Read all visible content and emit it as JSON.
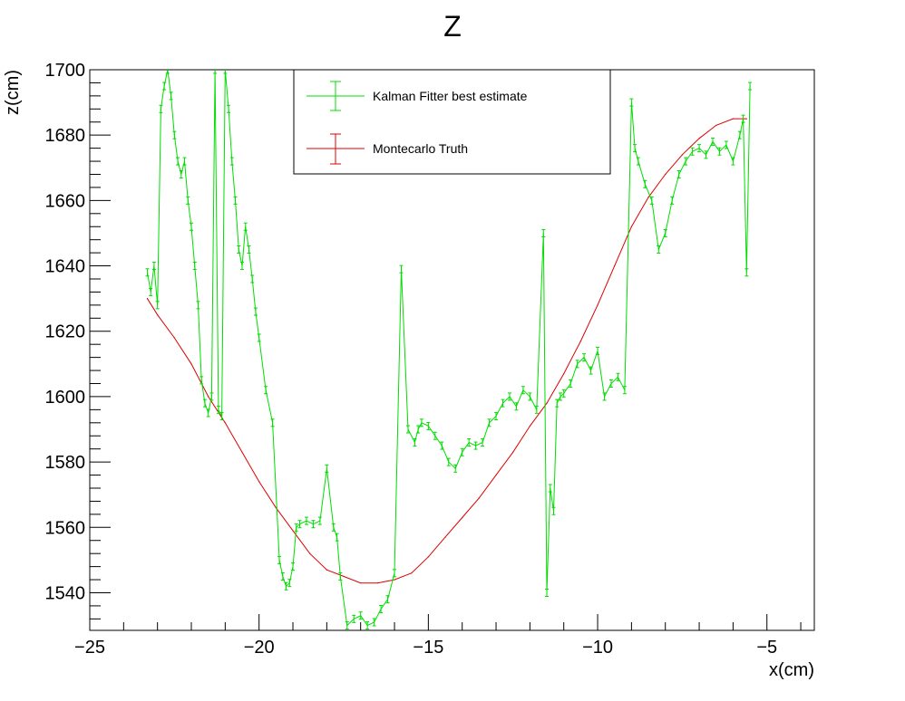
{
  "chart_data": {
    "type": "line",
    "title": "Z",
    "xlabel": "x(cm)",
    "ylabel": "z(cm)",
    "xlim": [
      -25.0,
      -3.6
    ],
    "ylim": [
      1528.5,
      1700
    ],
    "x_ticks": [
      -25,
      -20,
      -15,
      -10,
      -5
    ],
    "y_ticks": [
      1540,
      1560,
      1580,
      1600,
      1620,
      1640,
      1660,
      1680,
      1700
    ],
    "grid": false,
    "legend_position": "top-center",
    "series": [
      {
        "name": "Kalman Fitter best estimate",
        "color": "#00dd00",
        "error_bars": true,
        "x": [
          -23.3,
          -23.2,
          -23.1,
          -23.0,
          -22.9,
          -22.8,
          -22.7,
          -22.6,
          -22.5,
          -22.4,
          -22.3,
          -22.2,
          -22.1,
          -22.0,
          -21.9,
          -21.8,
          -21.7,
          -21.6,
          -21.5,
          -21.4,
          -21.3,
          -21.2,
          -21.1,
          -21.0,
          -20.9,
          -20.8,
          -20.7,
          -20.6,
          -20.5,
          -20.4,
          -20.3,
          -20.2,
          -20.1,
          -20.0,
          -19.8,
          -19.6,
          -19.4,
          -19.3,
          -19.2,
          -19.1,
          -19.0,
          -18.9,
          -18.8,
          -18.6,
          -18.4,
          -18.2,
          -18.0,
          -17.8,
          -17.7,
          -17.6,
          -17.4,
          -17.2,
          -17.0,
          -16.8,
          -16.6,
          -16.4,
          -16.2,
          -16.0,
          -15.8,
          -15.6,
          -15.4,
          -15.3,
          -15.2,
          -15.0,
          -14.8,
          -14.6,
          -14.4,
          -14.2,
          -14.0,
          -13.8,
          -13.6,
          -13.4,
          -13.2,
          -13.0,
          -12.8,
          -12.6,
          -12.4,
          -12.2,
          -12.0,
          -11.8,
          -11.6,
          -11.5,
          -11.4,
          -11.3,
          -11.2,
          -11.1,
          -11.0,
          -10.8,
          -10.6,
          -10.4,
          -10.2,
          -10.0,
          -9.8,
          -9.6,
          -9.4,
          -9.2,
          -9.0,
          -8.9,
          -8.8,
          -8.6,
          -8.4,
          -8.2,
          -8.0,
          -7.8,
          -7.6,
          -7.4,
          -7.2,
          -7.0,
          -6.8,
          -6.6,
          -6.4,
          -6.2,
          -6.0,
          -5.8,
          -5.7,
          -5.6,
          -5.5
        ],
        "y": [
          1638,
          1632,
          1640,
          1628,
          1688,
          1695,
          1700,
          1692,
          1680,
          1672,
          1668,
          1672,
          1660,
          1652,
          1640,
          1628,
          1605,
          1598,
          1595,
          1600,
          1700,
          1596,
          1594,
          1700,
          1688,
          1672,
          1660,
          1645,
          1640,
          1652,
          1645,
          1636,
          1626,
          1618,
          1602,
          1592,
          1550,
          1545,
          1542,
          1543,
          1548,
          1560,
          1561,
          1562,
          1561,
          1562,
          1578,
          1560,
          1557,
          1545,
          1530,
          1532,
          1533,
          1530,
          1531,
          1535,
          1538,
          1546,
          1639,
          1590,
          1586,
          1590,
          1592,
          1591,
          1588,
          1585,
          1580,
          1578,
          1583,
          1586,
          1585,
          1586,
          1592,
          1594,
          1598,
          1600,
          1597,
          1602,
          1600,
          1596,
          1650,
          1540,
          1572,
          1565,
          1598,
          1600,
          1601,
          1604,
          1610,
          1612,
          1608,
          1614,
          1600,
          1604,
          1606,
          1602,
          1690,
          1676,
          1672,
          1665,
          1660,
          1645,
          1650,
          1660,
          1668,
          1672,
          1675,
          1676,
          1674,
          1678,
          1675,
          1677,
          1672,
          1680,
          1685,
          1638,
          1695
        ]
      },
      {
        "name": "Montecarlo Truth",
        "color": "#dd0000",
        "error_bars": false,
        "x": [
          -23.3,
          -23.0,
          -22.5,
          -22.0,
          -21.5,
          -21.0,
          -20.5,
          -20.0,
          -19.5,
          -19.0,
          -18.5,
          -18.0,
          -17.5,
          -17.0,
          -16.5,
          -16.0,
          -15.5,
          -15.0,
          -14.5,
          -14.0,
          -13.5,
          -13.0,
          -12.5,
          -12.0,
          -11.5,
          -11.0,
          -10.5,
          -10.0,
          -9.5,
          -9.0,
          -8.5,
          -8.0,
          -7.5,
          -7.0,
          -6.5,
          -6.0,
          -5.6
        ],
        "y": [
          1630,
          1625,
          1618,
          1610,
          1600,
          1592,
          1583,
          1574,
          1566,
          1559,
          1552,
          1547,
          1545,
          1543,
          1543,
          1544,
          1546,
          1551,
          1557,
          1563,
          1569,
          1576,
          1583,
          1591,
          1598,
          1607,
          1617,
          1628,
          1640,
          1652,
          1661,
          1668,
          1674,
          1679,
          1683,
          1685,
          1685
        ]
      }
    ]
  }
}
